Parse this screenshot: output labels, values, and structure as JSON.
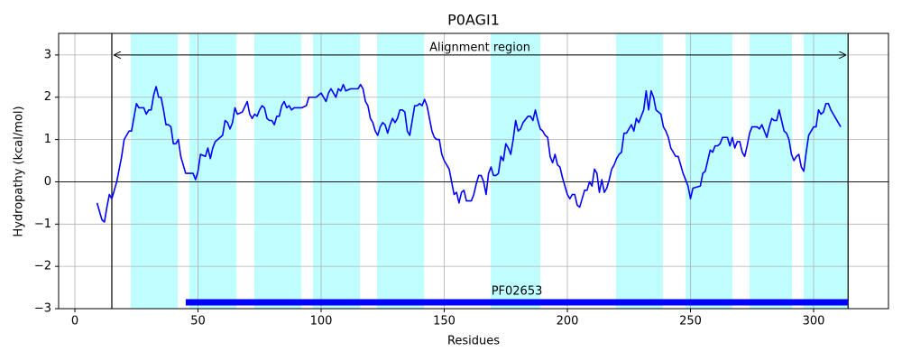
{
  "chart_data": {
    "type": "line",
    "title": "P0AGI1",
    "xlabel": "Residues",
    "ylabel": "Hydropathy (kcal/mol)",
    "xlim": [
      -6.6,
      330.4
    ],
    "ylim": [
      -3,
      3.51
    ],
    "xticks": [
      0,
      50,
      100,
      150,
      200,
      250,
      300
    ],
    "yticks": [
      {
        "value": -3,
        "label": "−3"
      },
      {
        "value": -2,
        "label": "−2"
      },
      {
        "value": -1,
        "label": "−1"
      },
      0,
      1,
      2,
      3
    ],
    "grid": true,
    "zero_line": 0,
    "series": [
      {
        "color": "#0000ff",
        "x": [
          9,
          11,
          12,
          13,
          14,
          15,
          17,
          19,
          20,
          22,
          23,
          25,
          26,
          28,
          29,
          30,
          31,
          32,
          33,
          34,
          35,
          36,
          37,
          38,
          39,
          40,
          41,
          42,
          43,
          45,
          47,
          48,
          49,
          50,
          51,
          53,
          54,
          55,
          56,
          57,
          58,
          60,
          61,
          62,
          63,
          64,
          65,
          66,
          68,
          70,
          71,
          72,
          73,
          74,
          75,
          76,
          77,
          78,
          79,
          80,
          81,
          82,
          83,
          84,
          85,
          86,
          87,
          88,
          89,
          92,
          94,
          95,
          97,
          98,
          99,
          100,
          101,
          102,
          103,
          104,
          106,
          107,
          108,
          109,
          110,
          112,
          115,
          116,
          117,
          118,
          119,
          120,
          121,
          122,
          123,
          124,
          125,
          126,
          127,
          128,
          129,
          130,
          131,
          132,
          133,
          134,
          135,
          136,
          138,
          139,
          140,
          141,
          142,
          143,
          144,
          145,
          146,
          147,
          148,
          149,
          150,
          151,
          152,
          153,
          154,
          155,
          156,
          157,
          158,
          159,
          161,
          162,
          163,
          164,
          165,
          166,
          167,
          168,
          169,
          170,
          171,
          172,
          173,
          174,
          175,
          176,
          177,
          178,
          179,
          180,
          181,
          182,
          184,
          185,
          186,
          187,
          188,
          189,
          190,
          191,
          192,
          193,
          194,
          195,
          196,
          197,
          198,
          199,
          200,
          201,
          202,
          203,
          204,
          205,
          207,
          208,
          209,
          210,
          211,
          212,
          213,
          214,
          215,
          216,
          217,
          218,
          219,
          220,
          221,
          222,
          223,
          224,
          225,
          226,
          227,
          228,
          229,
          231,
          232,
          233,
          234,
          235,
          236,
          237,
          238,
          239,
          240,
          241,
          242,
          243,
          244,
          245,
          246,
          247,
          248,
          249,
          250,
          251,
          254,
          255,
          256,
          257,
          258,
          259,
          260,
          261,
          262,
          263,
          264,
          265,
          266,
          267,
          268,
          269,
          270,
          271,
          272,
          273,
          274,
          275,
          277,
          278,
          279,
          280,
          281,
          282,
          283,
          284,
          285,
          286,
          287,
          288,
          289,
          290,
          291,
          292,
          293,
          294,
          295,
          296,
          297,
          298,
          300,
          301,
          302,
          303,
          304,
          305,
          306,
          307,
          308,
          309,
          310,
          311
        ],
        "values": [
          -0.5,
          -0.9,
          -0.95,
          -0.6,
          -0.3,
          -0.4,
          0.0,
          0.6,
          1.0,
          1.2,
          1.2,
          1.85,
          1.75,
          1.75,
          1.6,
          1.7,
          1.7,
          2.05,
          2.25,
          2.0,
          2.0,
          1.7,
          1.35,
          1.35,
          1.3,
          0.9,
          0.9,
          1.0,
          0.6,
          0.2,
          0.2,
          0.2,
          0.05,
          0.25,
          0.65,
          0.6,
          0.8,
          0.55,
          0.8,
          0.95,
          1.0,
          1.1,
          1.45,
          1.4,
          1.25,
          1.4,
          1.75,
          1.6,
          1.65,
          1.9,
          1.6,
          1.5,
          1.6,
          1.55,
          1.7,
          1.8,
          1.75,
          1.5,
          1.45,
          1.45,
          1.35,
          1.55,
          1.55,
          1.8,
          1.9,
          1.75,
          1.8,
          1.7,
          1.75,
          1.75,
          1.8,
          2.0,
          2.0,
          2.0,
          2.05,
          2.1,
          2.0,
          1.9,
          2.1,
          2.2,
          2.0,
          2.2,
          2.15,
          2.3,
          2.15,
          2.2,
          2.2,
          2.3,
          2.2,
          1.9,
          1.8,
          1.5,
          1.4,
          1.2,
          1.1,
          1.3,
          1.4,
          1.35,
          1.15,
          1.35,
          1.5,
          1.4,
          1.5,
          1.7,
          1.7,
          1.65,
          1.2,
          1.1,
          1.8,
          1.8,
          1.85,
          1.8,
          1.95,
          1.8,
          1.5,
          1.2,
          1.05,
          1.0,
          1.0,
          0.65,
          0.5,
          0.4,
          0.3,
          0.0,
          -0.3,
          -0.25,
          -0.5,
          -0.25,
          -0.2,
          -0.45,
          -0.45,
          -0.3,
          -0.05,
          0.15,
          0.15,
          0.0,
          -0.3,
          0.2,
          0.35,
          0.15,
          0.15,
          0.2,
          0.6,
          0.5,
          0.9,
          0.8,
          0.65,
          1.0,
          1.45,
          1.2,
          1.25,
          1.4,
          1.55,
          1.55,
          1.45,
          1.7,
          1.45,
          1.25,
          1.2,
          1.1,
          1.05,
          0.6,
          0.45,
          0.65,
          0.4,
          0.35,
          0.1,
          -0.1,
          -0.3,
          -0.4,
          -0.3,
          -0.3,
          -0.55,
          -0.6,
          -0.2,
          -0.2,
          0.0,
          -0.1,
          0.3,
          0.2,
          -0.25,
          0.05,
          -0.25,
          -0.15,
          0.05,
          0.3,
          0.4,
          0.55,
          0.65,
          0.7,
          1.15,
          1.15,
          1.25,
          1.35,
          1.2,
          1.5,
          1.4,
          1.7,
          2.15,
          1.7,
          2.15,
          2.0,
          1.7,
          1.65,
          1.6,
          1.3,
          1.2,
          1.05,
          0.8,
          0.7,
          0.6,
          0.6,
          0.4,
          0.2,
          0.05,
          -0.1,
          -0.4,
          -0.15,
          -0.1,
          0.2,
          0.25,
          0.5,
          0.75,
          0.7,
          0.85,
          0.85,
          0.9,
          1.05,
          1.05,
          1.05,
          0.85,
          1.05,
          0.8,
          0.95,
          0.95,
          0.7,
          0.6,
          0.85,
          1.15,
          1.3,
          1.3,
          1.25,
          1.35,
          1.2,
          1.05,
          1.3,
          1.5,
          1.45,
          1.45,
          1.7,
          1.45,
          1.2,
          1.15,
          1.0,
          0.65,
          0.5,
          0.6,
          0.65,
          0.35,
          0.25,
          0.7,
          1.1,
          1.3,
          1.3,
          1.7,
          1.6,
          1.65,
          1.85,
          1.85,
          1.7,
          1.6,
          1.5,
          1.4,
          1.3
        ]
      }
    ],
    "bands": {
      "color": "#bfffff",
      "ranges": [
        [
          22.7,
          41.8
        ],
        [
          46.5,
          65.6
        ],
        [
          72.9,
          91.9
        ],
        [
          96.7,
          115.8
        ],
        [
          122.7,
          141.8
        ],
        [
          168.9,
          189
        ],
        [
          219.8,
          238.8
        ],
        [
          248,
          267
        ],
        [
          274,
          291.2
        ],
        [
          296,
          314
        ]
      ]
    },
    "alignment": {
      "label": "Alignment region",
      "start": 15,
      "end": 314,
      "y": 3
    },
    "domain": {
      "label": "PF02653",
      "start": 45,
      "end": 314,
      "y": -2.85,
      "color": "#0000ff"
    }
  }
}
